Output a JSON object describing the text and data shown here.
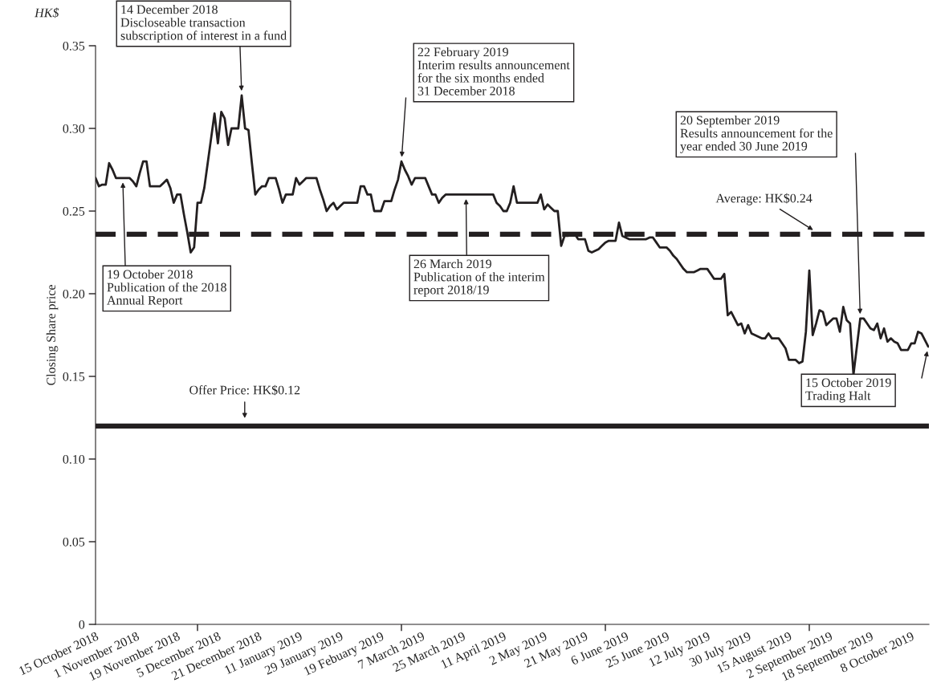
{
  "chart_data": {
    "type": "line",
    "ylabel": "Closing Share price",
    "categories": [
      "15 October 2018",
      null,
      null,
      null,
      null,
      null,
      null,
      null,
      null,
      null,
      null,
      null,
      "1 November 2018",
      null,
      null,
      null,
      null,
      null,
      null,
      null,
      null,
      null,
      null,
      null,
      "19 November 2018",
      null,
      null,
      null,
      null,
      null,
      null,
      null,
      null,
      null,
      null,
      null,
      "5 December 2018",
      null,
      null,
      null,
      null,
      null,
      null,
      null,
      null,
      null,
      null,
      null,
      "21 December 2018",
      null,
      null,
      null,
      null,
      null,
      null,
      null,
      null,
      null,
      null,
      null,
      "11 January 2019",
      null,
      null,
      null,
      null,
      null,
      null,
      null,
      null,
      null,
      null,
      null,
      "29 January 2019",
      null,
      null,
      null,
      null,
      null,
      null,
      null,
      null,
      null,
      null,
      null,
      "19 Febuary 2019",
      null,
      null,
      null,
      null,
      null,
      null,
      null,
      null,
      null,
      null,
      null,
      "7 March 2019",
      null,
      null,
      null,
      null,
      null,
      null,
      null,
      null,
      null,
      null,
      null,
      "25 March 2019",
      null,
      null,
      null,
      null,
      null,
      null,
      null,
      null,
      null,
      null,
      null,
      "11 April 2019",
      null,
      null,
      null,
      null,
      null,
      null,
      null,
      null,
      null,
      null,
      null,
      "2 May 2019",
      null,
      null,
      null,
      null,
      null,
      null,
      null,
      null,
      null,
      null,
      null,
      "21 May 2019",
      null,
      null,
      null,
      null,
      null,
      null,
      null,
      null,
      null,
      null,
      null,
      "6 June 2019",
      null,
      null,
      null,
      null,
      null,
      null,
      null,
      null,
      null,
      null,
      null,
      "25 June 2019",
      null,
      null,
      null,
      null,
      null,
      null,
      null,
      null,
      null,
      null,
      null,
      "12 July 2019",
      null,
      null,
      null,
      null,
      null,
      null,
      null,
      null,
      null,
      null,
      null,
      "30 July 2019",
      null,
      null,
      null,
      null,
      null,
      null,
      null,
      null,
      null,
      null,
      null,
      "15 August 2019",
      null,
      null,
      null,
      null,
      null,
      null,
      null,
      null,
      null,
      null,
      null,
      "2 September 2019",
      null,
      null,
      null,
      null,
      null,
      null,
      null,
      null,
      null,
      null,
      null,
      "18 September 2019",
      null,
      null,
      null,
      null,
      null,
      null,
      null,
      null,
      null,
      null,
      null,
      "8 October 2019",
      null,
      null,
      null,
      null,
      null
    ],
    "series": [
      {
        "color": "#231f20",
        "values": [
          0.27,
          0.265,
          0.266,
          0.266,
          0.279,
          0.275,
          0.27,
          0.27,
          0.27,
          0.27,
          0.27,
          0.268,
          0.265,
          0.273,
          0.28,
          0.28,
          0.265,
          0.265,
          0.265,
          0.265,
          0.267,
          0.269,
          0.264,
          0.255,
          0.26,
          0.26,
          0.248,
          0.237,
          0.225,
          0.228,
          0.255,
          0.255,
          0.264,
          0.279,
          0.294,
          0.309,
          0.291,
          0.31,
          0.306,
          0.29,
          0.3,
          0.3,
          0.3,
          0.32,
          0.3,
          0.299,
          0.279,
          0.26,
          0.263,
          0.265,
          0.265,
          0.27,
          0.27,
          0.27,
          0.263,
          0.255,
          0.26,
          0.26,
          0.26,
          0.27,
          0.266,
          0.268,
          0.27,
          0.27,
          0.27,
          0.27,
          0.263,
          0.257,
          0.25,
          0.253,
          0.255,
          0.251,
          0.253,
          0.255,
          0.255,
          0.255,
          0.255,
          0.255,
          0.265,
          0.265,
          0.26,
          0.26,
          0.25,
          0.25,
          0.25,
          0.256,
          0.256,
          0.256,
          0.263,
          0.269,
          0.28,
          0.275,
          0.271,
          0.266,
          0.27,
          0.27,
          0.27,
          0.27,
          0.265,
          0.26,
          0.26,
          0.255,
          0.258,
          0.26,
          0.26,
          0.26,
          0.26,
          0.26,
          0.26,
          0.26,
          0.26,
          0.26,
          0.26,
          0.26,
          0.26,
          0.26,
          0.26,
          0.26,
          0.255,
          0.253,
          0.25,
          0.25,
          0.255,
          0.265,
          0.255,
          0.255,
          0.255,
          0.255,
          0.255,
          0.255,
          0.255,
          0.26,
          0.251,
          0.254,
          0.252,
          0.25,
          0.25,
          0.229,
          0.235,
          0.235,
          0.236,
          0.236,
          0.233,
          0.233,
          0.233,
          0.226,
          0.225,
          0.226,
          0.227,
          0.229,
          0.231,
          0.232,
          0.232,
          0.232,
          0.243,
          0.235,
          0.234,
          0.233,
          0.233,
          0.233,
          0.233,
          0.233,
          0.233,
          0.234,
          0.234,
          0.231,
          0.228,
          0.228,
          0.228,
          0.226,
          0.223,
          0.221,
          0.218,
          0.215,
          0.213,
          0.213,
          0.213,
          0.214,
          0.215,
          0.215,
          0.215,
          0.212,
          0.209,
          0.209,
          0.209,
          0.212,
          0.187,
          0.189,
          0.185,
          0.181,
          0.182,
          0.176,
          0.181,
          0.176,
          0.175,
          0.174,
          0.173,
          0.173,
          0.176,
          0.173,
          0.173,
          0.173,
          0.17,
          0.167,
          0.16,
          0.16,
          0.16,
          0.158,
          0.159,
          0.177,
          0.214,
          0.175,
          0.182,
          0.19,
          0.189,
          0.181,
          0.183,
          0.185,
          0.185,
          0.177,
          0.192,
          0.184,
          0.182,
          0.151,
          0.168,
          0.185,
          0.185,
          0.182,
          0.179,
          0.178,
          0.182,
          0.173,
          0.179,
          0.171,
          0.173,
          0.171,
          0.17,
          0.166,
          0.166,
          0.166,
          0.17,
          0.17,
          0.177,
          0.176,
          0.172,
          0.168
        ]
      }
    ],
    "ylim": [
      0,
      0.35
    ],
    "yticks": [
      0,
      {
        "value": 0.05,
        "label": "0.05"
      },
      {
        "value": 0.1,
        "label": "0.10"
      },
      {
        "value": 0.15,
        "label": "0.15"
      },
      {
        "value": 0.2,
        "label": "0.20"
      },
      {
        "value": 0.25,
        "label": "0.25"
      },
      {
        "value": 0.3,
        "label": "0.30"
      },
      {
        "value": 0.35,
        "label": "0.35"
      }
    ],
    "ref_lines": [
      {
        "axis": "y",
        "value": 0.236,
        "label": "Average: HK$0.24",
        "color": "#231f20",
        "line_style": "dashed"
      },
      {
        "axis": "y",
        "value": 0.12,
        "label": "Offer Price: HK$0.12",
        "color": "#231f20",
        "line_style": "solid"
      }
    ],
    "annotations": [
      "HK$",
      "19 October 2018\nPublication of the 2018\nAnnual Report",
      "14 December 2018\nDiscloseable transaction\nsubscription of interest in a fund",
      "22 February 2019\nInterim results announcement\nfor the six months ended\n31 December 2018",
      "26 March 2019\nPublication of the interim\nreport 2018/19",
      "20 September 2019\nResults announcement for the\nyear ended 30 June 2019",
      "15 October 2019\nTrading Halt"
    ],
    "grid": false,
    "marker": "none",
    "line_style": "solid"
  }
}
